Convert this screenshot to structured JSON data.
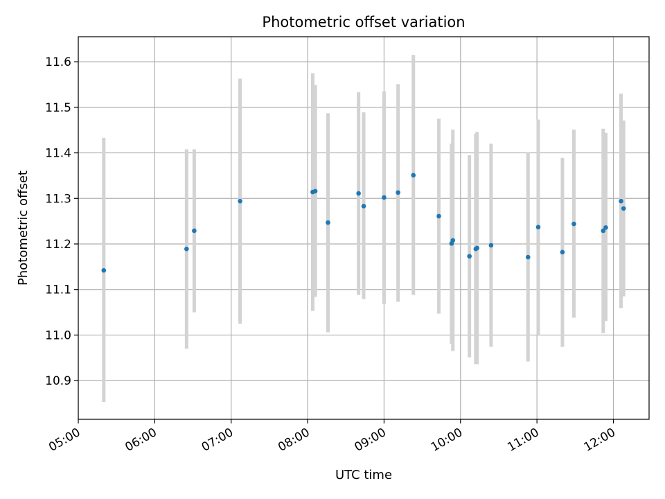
{
  "chart_data": {
    "type": "scatter",
    "title": "Photometric offset variation",
    "xlabel": "UTC time",
    "ylabel": "Photometric offset",
    "xlim": [
      "05:00",
      "12:28"
    ],
    "ylim": [
      10.815,
      11.655
    ],
    "x_ticks": [
      "05:00",
      "06:00",
      "07:00",
      "08:00",
      "09:00",
      "10:00",
      "11:00",
      "12:00"
    ],
    "y_ticks": [
      10.9,
      11.0,
      11.1,
      11.2,
      11.3,
      11.4,
      11.5,
      11.6
    ],
    "y_tick_labels": [
      "10.9",
      "11.0",
      "11.1",
      "11.2",
      "11.3",
      "11.4",
      "11.5",
      "11.6"
    ],
    "grid": true,
    "colors": {
      "points": "#1f77b4",
      "errorbars": "#d3d3d3",
      "grid": "#b0b0b0"
    },
    "series": [
      {
        "points": [
          {
            "x": "05:20",
            "y": 11.142,
            "lo": 10.853,
            "hi": 11.433
          },
          {
            "x": "06:25",
            "y": 11.189,
            "lo": 10.97,
            "hi": 11.408
          },
          {
            "x": "06:31",
            "y": 11.229,
            "lo": 11.05,
            "hi": 11.408
          },
          {
            "x": "07:07",
            "y": 11.294,
            "lo": 11.025,
            "hi": 11.563
          },
          {
            "x": "08:04",
            "y": 11.314,
            "lo": 11.053,
            "hi": 11.575
          },
          {
            "x": "08:06",
            "y": 11.316,
            "lo": 11.084,
            "hi": 11.549
          },
          {
            "x": "08:16",
            "y": 11.247,
            "lo": 11.006,
            "hi": 11.487
          },
          {
            "x": "08:40",
            "y": 11.311,
            "lo": 11.088,
            "hi": 11.533
          },
          {
            "x": "08:44",
            "y": 11.283,
            "lo": 11.079,
            "hi": 11.489
          },
          {
            "x": "09:00",
            "y": 11.302,
            "lo": 11.068,
            "hi": 11.535
          },
          {
            "x": "09:11",
            "y": 11.313,
            "lo": 11.073,
            "hi": 11.551
          },
          {
            "x": "09:23",
            "y": 11.351,
            "lo": 11.088,
            "hi": 11.615
          },
          {
            "x": "09:43",
            "y": 11.261,
            "lo": 11.047,
            "hi": 11.475
          },
          {
            "x": "09:53",
            "y": 11.201,
            "lo": 10.981,
            "hi": 11.42
          },
          {
            "x": "09:54",
            "y": 11.208,
            "lo": 10.965,
            "hi": 11.451
          },
          {
            "x": "10:07",
            "y": 11.173,
            "lo": 10.951,
            "hi": 11.395
          },
          {
            "x": "10:12",
            "y": 11.189,
            "lo": 10.936,
            "hi": 11.442
          },
          {
            "x": "10:13",
            "y": 11.191,
            "lo": 10.936,
            "hi": 11.446
          },
          {
            "x": "10:24",
            "y": 11.197,
            "lo": 10.974,
            "hi": 11.42
          },
          {
            "x": "10:53",
            "y": 11.171,
            "lo": 10.942,
            "hi": 11.4
          },
          {
            "x": "11:01",
            "y": 11.237,
            "lo": 11.0,
            "hi": 11.473
          },
          {
            "x": "11:20",
            "y": 11.182,
            "lo": 10.974,
            "hi": 11.389
          },
          {
            "x": "11:29",
            "y": 11.244,
            "lo": 11.038,
            "hi": 11.451
          },
          {
            "x": "11:52",
            "y": 11.229,
            "lo": 11.004,
            "hi": 11.453
          },
          {
            "x": "11:54",
            "y": 11.236,
            "lo": 11.031,
            "hi": 11.444
          },
          {
            "x": "12:06",
            "y": 11.294,
            "lo": 11.059,
            "hi": 11.53
          },
          {
            "x": "12:08",
            "y": 11.278,
            "lo": 11.085,
            "hi": 11.471
          }
        ]
      }
    ]
  }
}
